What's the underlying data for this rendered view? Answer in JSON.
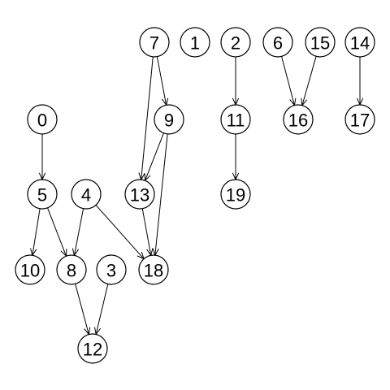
{
  "nodes": [
    {
      "id": "0",
      "label": "0"
    },
    {
      "id": "1",
      "label": "1"
    },
    {
      "id": "2",
      "label": "2"
    },
    {
      "id": "3",
      "label": "3"
    },
    {
      "id": "4",
      "label": "4"
    },
    {
      "id": "5",
      "label": "5"
    },
    {
      "id": "6",
      "label": "6"
    },
    {
      "id": "7",
      "label": "7"
    },
    {
      "id": "8",
      "label": "8"
    },
    {
      "id": "9",
      "label": "9"
    },
    {
      "id": "10",
      "label": "10"
    },
    {
      "id": "11",
      "label": "11"
    },
    {
      "id": "12",
      "label": "12"
    },
    {
      "id": "13",
      "label": "13"
    },
    {
      "id": "14",
      "label": "14"
    },
    {
      "id": "15",
      "label": "15"
    },
    {
      "id": "16",
      "label": "16"
    },
    {
      "id": "17",
      "label": "17"
    },
    {
      "id": "18",
      "label": "18"
    },
    {
      "id": "19",
      "label": "19"
    }
  ],
  "edges": [
    {
      "from": "0",
      "to": "5"
    },
    {
      "from": "5",
      "to": "10"
    },
    {
      "from": "5",
      "to": "8"
    },
    {
      "from": "4",
      "to": "8"
    },
    {
      "from": "4",
      "to": "18"
    },
    {
      "from": "7",
      "to": "9"
    },
    {
      "from": "7",
      "to": "13"
    },
    {
      "from": "9",
      "to": "13"
    },
    {
      "from": "9",
      "to": "18"
    },
    {
      "from": "13",
      "to": "18"
    },
    {
      "from": "8",
      "to": "12"
    },
    {
      "from": "3",
      "to": "12"
    },
    {
      "from": "2",
      "to": "11"
    },
    {
      "from": "11",
      "to": "19"
    },
    {
      "from": "6",
      "to": "16"
    },
    {
      "from": "15",
      "to": "16"
    },
    {
      "from": "14",
      "to": "17"
    }
  ]
}
